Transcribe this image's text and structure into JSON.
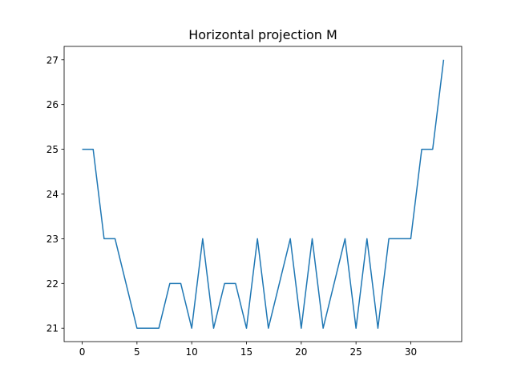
{
  "chart_data": {
    "type": "line",
    "title": "Horizontal projection M",
    "xlabel": "",
    "ylabel": "",
    "xlim": [
      -1.65,
      34.65
    ],
    "ylim": [
      20.7,
      27.3
    ],
    "xticks": [
      0,
      5,
      10,
      15,
      20,
      25,
      30
    ],
    "yticks": [
      21,
      22,
      23,
      24,
      25,
      26,
      27
    ],
    "grid": false,
    "series": [
      {
        "color": "#1f77b4",
        "x": [
          0,
          1,
          2,
          3,
          4,
          5,
          6,
          7,
          8,
          9,
          10,
          11,
          12,
          13,
          14,
          15,
          16,
          17,
          18,
          19,
          20,
          21,
          22,
          23,
          24,
          25,
          26,
          27,
          28,
          29,
          30,
          31,
          32,
          33
        ],
        "values": [
          25,
          25,
          23,
          23,
          22,
          21,
          21,
          21,
          22,
          22,
          21,
          23,
          21,
          22,
          22,
          21,
          23,
          21,
          22,
          23,
          21,
          23,
          21,
          22,
          23,
          21,
          23,
          21,
          23,
          23,
          23,
          25,
          25,
          27
        ]
      }
    ]
  }
}
